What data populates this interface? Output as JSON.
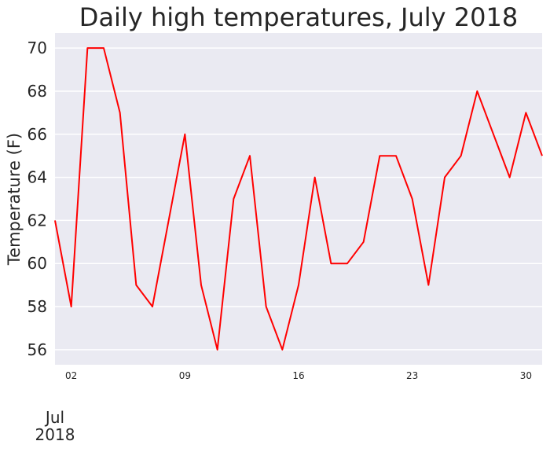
{
  "chart_data": {
    "type": "line",
    "title": "Daily high temperatures, July 2018",
    "xlabel": "",
    "ylabel": "Temperature (F)",
    "x": [
      1,
      2,
      3,
      4,
      5,
      6,
      7,
      8,
      9,
      10,
      11,
      12,
      13,
      14,
      15,
      16,
      17,
      18,
      19,
      20,
      21,
      22,
      23,
      24,
      25,
      26,
      27,
      28,
      29,
      30,
      31
    ],
    "xlim": [
      1,
      31
    ],
    "ylim": [
      55.3,
      70.7
    ],
    "y_ticks": [
      56,
      58,
      60,
      62,
      64,
      66,
      68,
      70
    ],
    "x_tick_positions": [
      2,
      9,
      16,
      23,
      30
    ],
    "x_tick_labels": [
      "02",
      "09",
      "16",
      "23",
      "30"
    ],
    "x_major_label": [
      "Jul",
      "2018"
    ],
    "grid": true,
    "series": [
      {
        "name": "Daily high",
        "color": "#ff0000",
        "values": [
          62,
          58,
          70,
          70,
          67,
          59,
          58,
          62,
          66,
          59,
          56,
          63,
          65,
          58,
          56,
          59,
          64,
          60,
          60,
          61,
          65,
          65,
          63,
          59,
          64,
          65,
          68,
          66,
          64,
          67,
          65
        ]
      }
    ]
  }
}
